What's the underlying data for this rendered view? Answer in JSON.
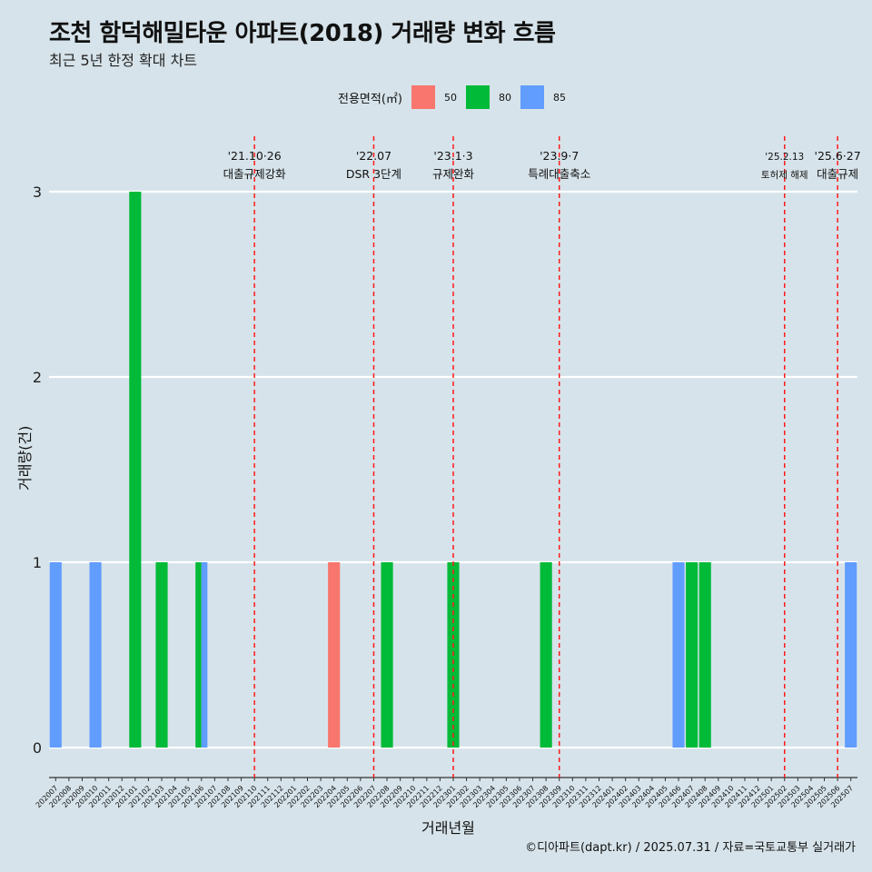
{
  "chart_data": {
    "type": "bar",
    "title": "조천 함덕해밀타운 아파트(2018) 거래량 변화 흐름",
    "subtitle": "최근 5년 한정 확대 차트",
    "xlabel": "거래년월",
    "ylabel": "거래량(건)",
    "ylim": [
      0,
      3
    ],
    "yticks": [
      "0",
      "1",
      "2",
      "3"
    ],
    "legend": {
      "title": "전용면적(㎡)",
      "position": "top-center",
      "items": [
        {
          "label": "50",
          "color": "#f8766d"
        },
        {
          "label": "80",
          "color": "#00ba38"
        },
        {
          "label": "85",
          "color": "#619cff"
        }
      ]
    },
    "categories": [
      "202007",
      "202008",
      "202009",
      "202010",
      "202011",
      "202012",
      "202101",
      "202102",
      "202103",
      "202104",
      "202105",
      "202106",
      "202107",
      "202108",
      "202109",
      "202110",
      "202111",
      "202112",
      "202201",
      "202202",
      "202203",
      "202204",
      "202205",
      "202206",
      "202207",
      "202208",
      "202209",
      "202210",
      "202211",
      "202212",
      "202301",
      "202302",
      "202303",
      "202304",
      "202305",
      "202306",
      "202307",
      "202308",
      "202309",
      "202310",
      "202311",
      "202312",
      "202401",
      "202402",
      "202403",
      "202404",
      "202405",
      "202406",
      "202407",
      "202408",
      "202409",
      "202410",
      "202411",
      "202412",
      "202501",
      "202502",
      "202503",
      "202504",
      "202505",
      "202506",
      "202507"
    ],
    "bars": [
      {
        "month": "202007",
        "area": "85",
        "value": 1
      },
      {
        "month": "202010",
        "area": "85",
        "value": 1
      },
      {
        "month": "202101",
        "area": "80",
        "value": 3
      },
      {
        "month": "202103",
        "area": "80",
        "value": 1
      },
      {
        "month": "202106",
        "area": "80",
        "value": 1
      },
      {
        "month": "202106",
        "area": "85",
        "value": 1
      },
      {
        "month": "202204",
        "area": "50",
        "value": 1
      },
      {
        "month": "202208",
        "area": "80",
        "value": 1
      },
      {
        "month": "202301",
        "area": "80",
        "value": 1
      },
      {
        "month": "202308",
        "area": "80",
        "value": 1
      },
      {
        "month": "202406",
        "area": "85",
        "value": 1
      },
      {
        "month": "202407",
        "area": "80",
        "value": 1
      },
      {
        "month": "202408",
        "area": "80",
        "value": 1
      },
      {
        "month": "202507",
        "area": "85",
        "value": 1
      }
    ],
    "annotations": [
      {
        "month": "202110",
        "date": "'21.10·26",
        "text": "대출규제강화",
        "small": false
      },
      {
        "month": "202207",
        "date": "'22.07",
        "text": "DSR 3단계",
        "small": false
      },
      {
        "month": "202301",
        "date": "'23.1·3",
        "text": "규제완화",
        "small": false
      },
      {
        "month": "202309",
        "date": "'23.9·7",
        "text": "특례대출축소",
        "small": false
      },
      {
        "month": "202502",
        "date": "'25.2.13",
        "text": "토허제 해제",
        "small": true
      },
      {
        "month": "202506",
        "date": "'25.6·27",
        "text": "대출규제",
        "small": false
      }
    ],
    "grid": true
  },
  "caption": "©디아파트(dapt.kr) / 2025.07.31 / 자료=국토교통부 실거래가"
}
